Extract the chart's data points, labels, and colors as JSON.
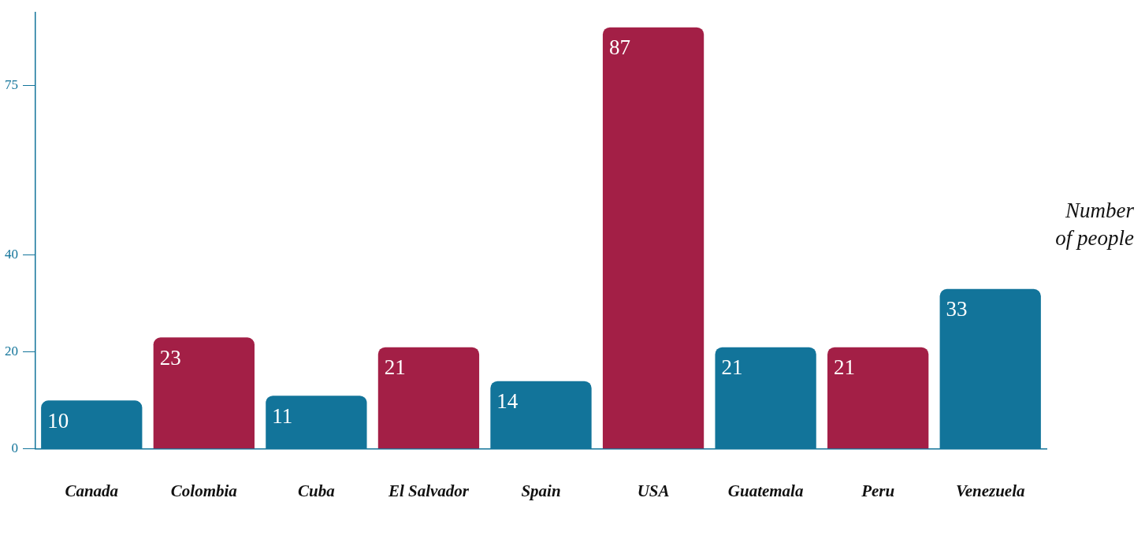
{
  "chart_data": {
    "type": "bar",
    "ylabel": "Number\nof people",
    "categories": [
      "Canada",
      "Colombia",
      "Cuba",
      "El Salvador",
      "Spain",
      "USA",
      "Guatemala",
      "Peru",
      "Venezuela"
    ],
    "values": [
      10,
      23,
      11,
      21,
      14,
      87,
      21,
      21,
      33
    ],
    "colors": [
      "#12749a",
      "#a31f46",
      "#12749a",
      "#a31f46",
      "#12749a",
      "#a31f46",
      "#12749a",
      "#a31f46",
      "#12749a"
    ],
    "ylim": [
      0,
      90
    ],
    "yticks": [
      0,
      20,
      40,
      75
    ],
    "grid": false,
    "legend": false,
    "data_labels": true
  }
}
